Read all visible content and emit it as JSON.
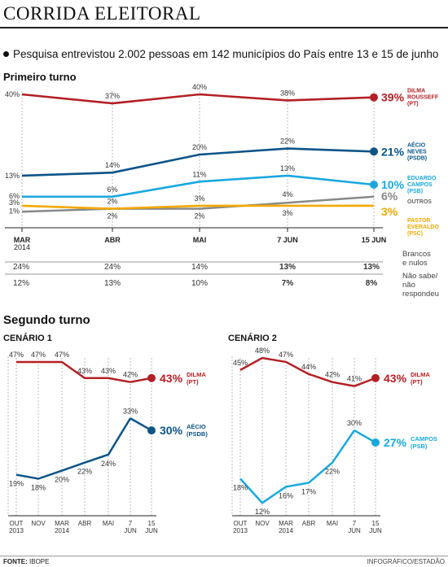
{
  "header": {
    "title": "CORRIDA ELEITORAL",
    "subtitle": "Pesquisa entrevistou 2.002 pessoas em 142 municípios do País entre 13 e 15 de junho"
  },
  "colors": {
    "dilma": "#b32025",
    "aecio": "#0d5488",
    "campos": "#19a8dd",
    "everaldo": "#f2a900",
    "outros": "#888888"
  },
  "chart_data": [
    {
      "id": "primeiro-turno",
      "type": "line",
      "title": "Primeiro turno",
      "categories": [
        "MAR 2014",
        "ABR",
        "MAI",
        "7 JUN",
        "15 JUN"
      ],
      "ylim": [
        0,
        40
      ],
      "series": [
        {
          "name": "DILMA ROUSSEFF (PT)",
          "values": [
            40,
            37,
            40,
            38,
            39
          ]
        },
        {
          "name": "AÉCIO NEVES (PSDB)",
          "values": [
            13,
            14,
            20,
            22,
            21
          ]
        },
        {
          "name": "EDUARDO CAMPOS (PSB)",
          "values": [
            6,
            6,
            11,
            13,
            10
          ]
        },
        {
          "name": "OUTROS",
          "values": [
            1,
            2,
            2,
            4,
            6
          ]
        },
        {
          "name": "PASTOR EVERALDO (PSC)",
          "values": [
            3,
            2,
            3,
            3,
            3
          ]
        }
      ],
      "table": [
        {
          "label": "Brancos e nulos",
          "values": [
            "24%",
            "24%",
            "14%",
            "13%",
            "13%"
          ]
        },
        {
          "label": "Não sabe/ não respondeu",
          "values": [
            "12%",
            "13%",
            "10%",
            "7%",
            "8%"
          ]
        }
      ]
    },
    {
      "id": "cenario-1",
      "type": "line",
      "title": "Segundo turno",
      "subtitle": "CENÁRIO 1",
      "categories": [
        "OUT 2013",
        "NOV",
        "MAR 2014",
        "ABR",
        "MAI",
        "7 JUN",
        "15 JUN"
      ],
      "series": [
        {
          "name": "DILMA (PT)",
          "values": [
            47,
            47,
            47,
            43,
            43,
            42,
            43
          ]
        },
        {
          "name": "AÉCIO (PSDB)",
          "values": [
            19,
            18,
            20,
            22,
            24,
            33,
            30
          ]
        }
      ]
    },
    {
      "id": "cenario-2",
      "type": "line",
      "subtitle": "CENÁRIO 2",
      "categories": [
        "OUT 2013",
        "NOV",
        "MAR 2014",
        "ABR",
        "MAI",
        "7 JUN",
        "15 JUN"
      ],
      "series": [
        {
          "name": "DILMA (PT)",
          "values": [
            45,
            48,
            47,
            44,
            42,
            41,
            43
          ]
        },
        {
          "name": "CAMPOS (PSB)",
          "values": [
            18,
            12,
            16,
            17,
            22,
            30,
            27
          ]
        }
      ]
    }
  ],
  "footer": {
    "source_label": "FONTE:",
    "source": "IBOPE",
    "credit": "INFOGRÁFICO/ESTADÃO"
  }
}
